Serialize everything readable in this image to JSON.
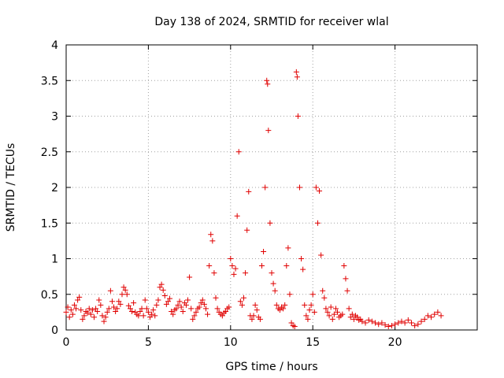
{
  "chart_data": {
    "type": "scatter",
    "title": "Day 138 of 2024, SRMTID for receiver wlal",
    "xlabel": "GPS time / hours",
    "ylabel": "SRMTID / TECUs",
    "xlim": [
      0,
      25
    ],
    "ylim": [
      0,
      4
    ],
    "xticks": [
      0,
      5,
      10,
      15,
      20
    ],
    "yticks": [
      0,
      0.5,
      1,
      1.5,
      2,
      2.5,
      3,
      3.5,
      4
    ],
    "grid": true,
    "marker": "+",
    "color": "#e00000",
    "series": [
      {
        "name": "SRMTID",
        "points": [
          [
            0.0,
            0.25
          ],
          [
            0.1,
            0.32
          ],
          [
            0.2,
            0.18
          ],
          [
            0.3,
            0.28
          ],
          [
            0.4,
            0.22
          ],
          [
            0.5,
            0.35
          ],
          [
            0.6,
            0.3
          ],
          [
            0.7,
            0.42
          ],
          [
            0.8,
            0.46
          ],
          [
            0.9,
            0.28
          ],
          [
            1.0,
            0.15
          ],
          [
            1.1,
            0.2
          ],
          [
            1.2,
            0.26
          ],
          [
            1.3,
            0.24
          ],
          [
            1.4,
            0.3
          ],
          [
            1.5,
            0.22
          ],
          [
            1.6,
            0.28
          ],
          [
            1.7,
            0.18
          ],
          [
            1.8,
            0.3
          ],
          [
            1.9,
            0.26
          ],
          [
            2.0,
            0.42
          ],
          [
            2.1,
            0.35
          ],
          [
            2.2,
            0.2
          ],
          [
            2.3,
            0.12
          ],
          [
            2.4,
            0.18
          ],
          [
            2.5,
            0.25
          ],
          [
            2.6,
            0.3
          ],
          [
            2.7,
            0.55
          ],
          [
            2.8,
            0.4
          ],
          [
            2.9,
            0.32
          ],
          [
            3.0,
            0.26
          ],
          [
            3.1,
            0.3
          ],
          [
            3.2,
            0.4
          ],
          [
            3.3,
            0.36
          ],
          [
            3.4,
            0.5
          ],
          [
            3.5,
            0.6
          ],
          [
            3.6,
            0.56
          ],
          [
            3.7,
            0.5
          ],
          [
            3.8,
            0.34
          ],
          [
            3.9,
            0.3
          ],
          [
            4.0,
            0.26
          ],
          [
            4.1,
            0.38
          ],
          [
            4.2,
            0.25
          ],
          [
            4.3,
            0.22
          ],
          [
            4.4,
            0.2
          ],
          [
            4.5,
            0.26
          ],
          [
            4.6,
            0.3
          ],
          [
            4.7,
            0.2
          ],
          [
            4.8,
            0.42
          ],
          [
            4.9,
            0.3
          ],
          [
            5.0,
            0.25
          ],
          [
            5.1,
            0.18
          ],
          [
            5.2,
            0.22
          ],
          [
            5.3,
            0.28
          ],
          [
            5.4,
            0.2
          ],
          [
            5.5,
            0.35
          ],
          [
            5.6,
            0.42
          ],
          [
            5.7,
            0.6
          ],
          [
            5.8,
            0.64
          ],
          [
            5.9,
            0.56
          ],
          [
            6.0,
            0.48
          ],
          [
            6.1,
            0.36
          ],
          [
            6.2,
            0.4
          ],
          [
            6.3,
            0.44
          ],
          [
            6.4,
            0.26
          ],
          [
            6.5,
            0.22
          ],
          [
            6.6,
            0.28
          ],
          [
            6.7,
            0.3
          ],
          [
            6.8,
            0.35
          ],
          [
            6.9,
            0.4
          ],
          [
            7.0,
            0.32
          ],
          [
            7.1,
            0.26
          ],
          [
            7.2,
            0.38
          ],
          [
            7.3,
            0.35
          ],
          [
            7.4,
            0.42
          ],
          [
            7.5,
            0.74
          ],
          [
            7.6,
            0.3
          ],
          [
            7.7,
            0.15
          ],
          [
            7.8,
            0.2
          ],
          [
            7.9,
            0.25
          ],
          [
            8.0,
            0.3
          ],
          [
            8.1,
            0.32
          ],
          [
            8.2,
            0.38
          ],
          [
            8.3,
            0.42
          ],
          [
            8.4,
            0.36
          ],
          [
            8.5,
            0.3
          ],
          [
            8.6,
            0.22
          ],
          [
            8.7,
            0.9
          ],
          [
            8.8,
            1.34
          ],
          [
            8.9,
            1.25
          ],
          [
            9.0,
            0.8
          ],
          [
            9.1,
            0.45
          ],
          [
            9.2,
            0.3
          ],
          [
            9.3,
            0.25
          ],
          [
            9.4,
            0.22
          ],
          [
            9.5,
            0.2
          ],
          [
            9.6,
            0.24
          ],
          [
            9.7,
            0.26
          ],
          [
            9.8,
            0.3
          ],
          [
            9.9,
            0.32
          ],
          [
            10.0,
            1.0
          ],
          [
            10.1,
            0.9
          ],
          [
            10.2,
            0.78
          ],
          [
            10.3,
            0.86
          ],
          [
            10.4,
            1.6
          ],
          [
            10.5,
            2.5
          ],
          [
            10.6,
            0.4
          ],
          [
            10.7,
            0.35
          ],
          [
            10.8,
            0.45
          ],
          [
            10.9,
            0.8
          ],
          [
            11.0,
            1.4
          ],
          [
            11.1,
            1.94
          ],
          [
            11.2,
            0.2
          ],
          [
            11.3,
            0.15
          ],
          [
            11.4,
            0.2
          ],
          [
            11.5,
            0.35
          ],
          [
            11.6,
            0.28
          ],
          [
            11.7,
            0.18
          ],
          [
            11.8,
            0.15
          ],
          [
            11.9,
            0.9
          ],
          [
            12.0,
            1.1
          ],
          [
            12.1,
            2.0
          ],
          [
            12.2,
            3.5
          ],
          [
            12.25,
            3.45
          ],
          [
            12.3,
            2.8
          ],
          [
            12.4,
            1.5
          ],
          [
            12.5,
            0.8
          ],
          [
            12.6,
            0.65
          ],
          [
            12.7,
            0.55
          ],
          [
            12.8,
            0.35
          ],
          [
            12.9,
            0.3
          ],
          [
            13.0,
            0.28
          ],
          [
            13.1,
            0.32
          ],
          [
            13.2,
            0.3
          ],
          [
            13.3,
            0.35
          ],
          [
            13.4,
            0.9
          ],
          [
            13.5,
            1.15
          ],
          [
            13.6,
            0.5
          ],
          [
            13.7,
            0.1
          ],
          [
            13.8,
            0.06
          ],
          [
            13.9,
            0.05
          ],
          [
            14.0,
            3.62
          ],
          [
            14.05,
            3.55
          ],
          [
            14.1,
            3.0
          ],
          [
            14.2,
            2.0
          ],
          [
            14.3,
            1.0
          ],
          [
            14.4,
            0.85
          ],
          [
            14.5,
            0.35
          ],
          [
            14.6,
            0.2
          ],
          [
            14.7,
            0.15
          ],
          [
            14.8,
            0.28
          ],
          [
            14.9,
            0.35
          ],
          [
            15.0,
            0.5
          ],
          [
            15.1,
            0.25
          ],
          [
            15.2,
            2.0
          ],
          [
            15.3,
            1.5
          ],
          [
            15.4,
            1.95
          ],
          [
            15.5,
            1.05
          ],
          [
            15.6,
            0.55
          ],
          [
            15.7,
            0.45
          ],
          [
            15.8,
            0.3
          ],
          [
            15.9,
            0.25
          ],
          [
            16.0,
            0.2
          ],
          [
            16.1,
            0.32
          ],
          [
            16.2,
            0.15
          ],
          [
            16.3,
            0.22
          ],
          [
            16.4,
            0.3
          ],
          [
            16.5,
            0.25
          ],
          [
            16.6,
            0.18
          ],
          [
            16.7,
            0.2
          ],
          [
            16.8,
            0.22
          ],
          [
            16.9,
            0.9
          ],
          [
            17.0,
            0.72
          ],
          [
            17.1,
            0.55
          ],
          [
            17.2,
            0.3
          ],
          [
            17.3,
            0.18
          ],
          [
            17.4,
            0.22
          ],
          [
            17.5,
            0.15
          ],
          [
            17.6,
            0.2
          ],
          [
            17.7,
            0.18
          ],
          [
            17.8,
            0.14
          ],
          [
            17.9,
            0.15
          ],
          [
            18.0,
            0.12
          ],
          [
            18.2,
            0.1
          ],
          [
            18.4,
            0.14
          ],
          [
            18.6,
            0.12
          ],
          [
            18.8,
            0.1
          ],
          [
            19.0,
            0.08
          ],
          [
            19.2,
            0.1
          ],
          [
            19.4,
            0.07
          ],
          [
            19.6,
            0.05
          ],
          [
            19.8,
            0.06
          ],
          [
            20.0,
            0.08
          ],
          [
            20.2,
            0.1
          ],
          [
            20.4,
            0.12
          ],
          [
            20.6,
            0.1
          ],
          [
            20.8,
            0.14
          ],
          [
            21.0,
            0.1
          ],
          [
            21.2,
            0.06
          ],
          [
            21.4,
            0.08
          ],
          [
            21.6,
            0.12
          ],
          [
            21.8,
            0.15
          ],
          [
            22.0,
            0.2
          ],
          [
            22.2,
            0.18
          ],
          [
            22.4,
            0.22
          ],
          [
            22.6,
            0.25
          ],
          [
            22.8,
            0.2
          ]
        ]
      }
    ]
  }
}
